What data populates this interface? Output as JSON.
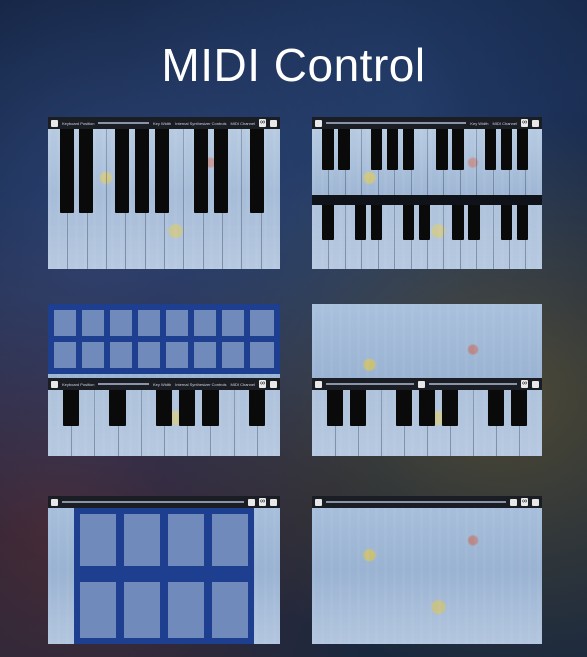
{
  "page": {
    "title": "MIDI Control"
  },
  "toolbar": {
    "keyboard_position": "Keyboard Position",
    "key_width": "Key Width",
    "internal_synth": "Internal Synthesizer Controls",
    "midi_channel": "MIDI Channel",
    "image": "Image",
    "infinity": "∞"
  },
  "panels": [
    {
      "id": "p1",
      "layout": "single-keyboard"
    },
    {
      "id": "p2",
      "layout": "dual-keyboard"
    },
    {
      "id": "p3",
      "layout": "pads-over-keyboard"
    },
    {
      "id": "p4",
      "layout": "canvas-over-keyboard"
    },
    {
      "id": "p5",
      "layout": "pad-grid"
    },
    {
      "id": "p6",
      "layout": "canvas"
    }
  ],
  "colors": {
    "accent": "#1e3f8f",
    "toolbar": "#1a1d24",
    "black_key": "#0a0a0a"
  }
}
